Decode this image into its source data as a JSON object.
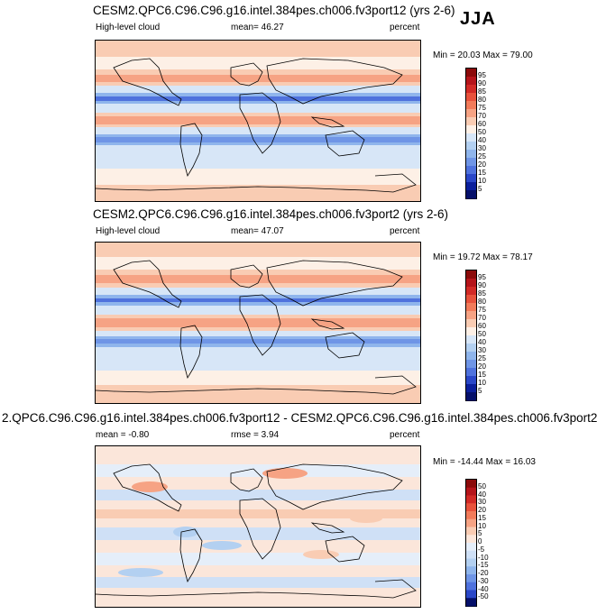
{
  "season": "JJA",
  "panels": [
    {
      "title": "CESM2.QPC6.C96.C96.g16.intel.384pes.ch006.fv3port12 (yrs 2-6)",
      "left_label": "High-level cloud",
      "stat1": "mean=  46.27",
      "stat2": "",
      "units": "percent",
      "minmax": "Min = 20.03 Max = 79.00",
      "levels": [
        "95",
        "90",
        "85",
        "80",
        "75",
        "70",
        "60",
        "50",
        "40",
        "30",
        "25",
        "20",
        "15",
        "10",
        "5"
      ],
      "type": "abs"
    },
    {
      "title": "CESM2.QPC6.C96.C96.g16.intel.384pes.ch006.fv3port2 (yrs 2-6)",
      "left_label": "High-level cloud",
      "stat1": "mean=  47.07",
      "stat2": "",
      "units": "percent",
      "minmax": "Min = 19.72 Max = 78.17",
      "levels": [
        "95",
        "90",
        "85",
        "80",
        "75",
        "70",
        "60",
        "50",
        "40",
        "30",
        "25",
        "20",
        "15",
        "10",
        "5"
      ],
      "type": "abs"
    },
    {
      "title": "2.QPC6.C96.C96.g16.intel.384pes.ch006.fv3port12 - CESM2.QPC6.C96.C96.g16.intel.384pes.ch006.fv3port2",
      "left_label": "mean =  -0.80",
      "stat1": "rmse =   3.94",
      "stat2": "",
      "units": "percent",
      "minmax": "Min = -14.44 Max = 16.03",
      "levels": [
        "50",
        "40",
        "30",
        "20",
        "15",
        "10",
        "5",
        "0",
        "-5",
        "-10",
        "-15",
        "-20",
        "-30",
        "-40",
        "-50"
      ],
      "type": "diff"
    }
  ],
  "colors": {
    "abs_bar": [
      "#8b0a0a",
      "#b5141a",
      "#d22a26",
      "#e8523c",
      "#f27b5a",
      "#f6a384",
      "#f9ccb3",
      "#fdf0e6",
      "#d7e6f7",
      "#b3d0f1",
      "#8fb5ec",
      "#6f95e6",
      "#4f72dd",
      "#2a47c8",
      "#0b1f9c",
      "#05106a"
    ],
    "diff_bar": [
      "#8b0a0a",
      "#b5141a",
      "#d22a26",
      "#e8523c",
      "#f27b5a",
      "#f6a384",
      "#f9ccb3",
      "#fbe6da",
      "#e5eef9",
      "#cfe0f6",
      "#b3d0f1",
      "#8fb5ec",
      "#6f95e6",
      "#4f72dd",
      "#2a47c8",
      "#05106a"
    ]
  }
}
